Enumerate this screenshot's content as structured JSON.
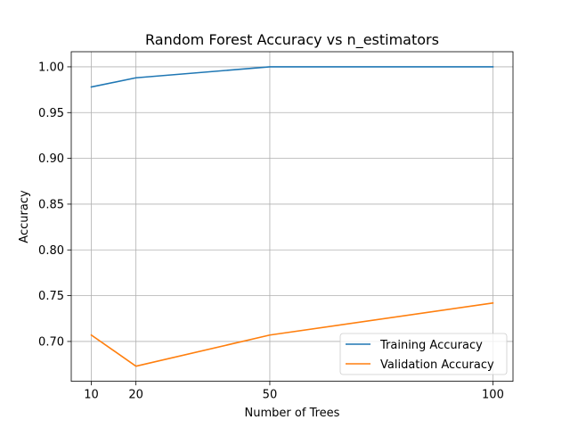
{
  "chart_data": {
    "type": "line",
    "title": "Random Forest Accuracy vs n_estimators",
    "xlabel": "Number of Trees",
    "ylabel": "Accuracy",
    "x": [
      10,
      20,
      50,
      100
    ],
    "xticks": [
      10,
      20,
      50,
      100
    ],
    "xlim": [
      5.5,
      104.5
    ],
    "yticks": [
      0.7,
      0.75,
      0.8,
      0.85,
      0.9,
      0.95,
      1.0
    ],
    "ylim": [
      0.6565,
      1.0165
    ],
    "grid": true,
    "legend_position": "lower-right",
    "series": [
      {
        "name": "Training Accuracy",
        "color": "#1f77b4",
        "values": [
          0.978,
          0.988,
          1.0,
          1.0
        ]
      },
      {
        "name": "Validation Accuracy",
        "color": "#ff7f0e",
        "values": [
          0.707,
          0.673,
          0.707,
          0.742
        ]
      }
    ]
  }
}
